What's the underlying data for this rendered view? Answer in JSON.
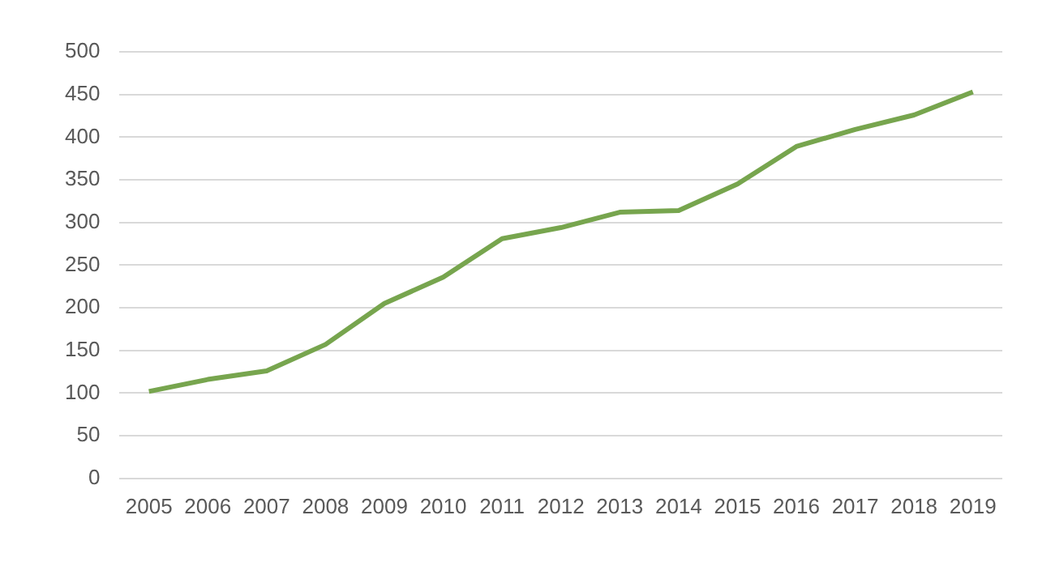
{
  "chart_data": {
    "type": "line",
    "categories": [
      "2005",
      "2006",
      "2007",
      "2008",
      "2009",
      "2010",
      "2011",
      "2012",
      "2013",
      "2014",
      "2015",
      "2016",
      "2017",
      "2018",
      "2019"
    ],
    "series": [
      {
        "color": "#77a54e",
        "values": [
          102,
          116,
          126,
          157,
          205,
          236,
          281,
          294,
          312,
          314,
          345,
          389,
          409,
          426,
          453
        ]
      }
    ],
    "ylim": [
      0,
      500
    ],
    "yticks": [
      0,
      50,
      100,
      150,
      200,
      250,
      300,
      350,
      400,
      450,
      500
    ],
    "grid": "y",
    "legend": false,
    "marker": "none",
    "line_style": "solid"
  }
}
